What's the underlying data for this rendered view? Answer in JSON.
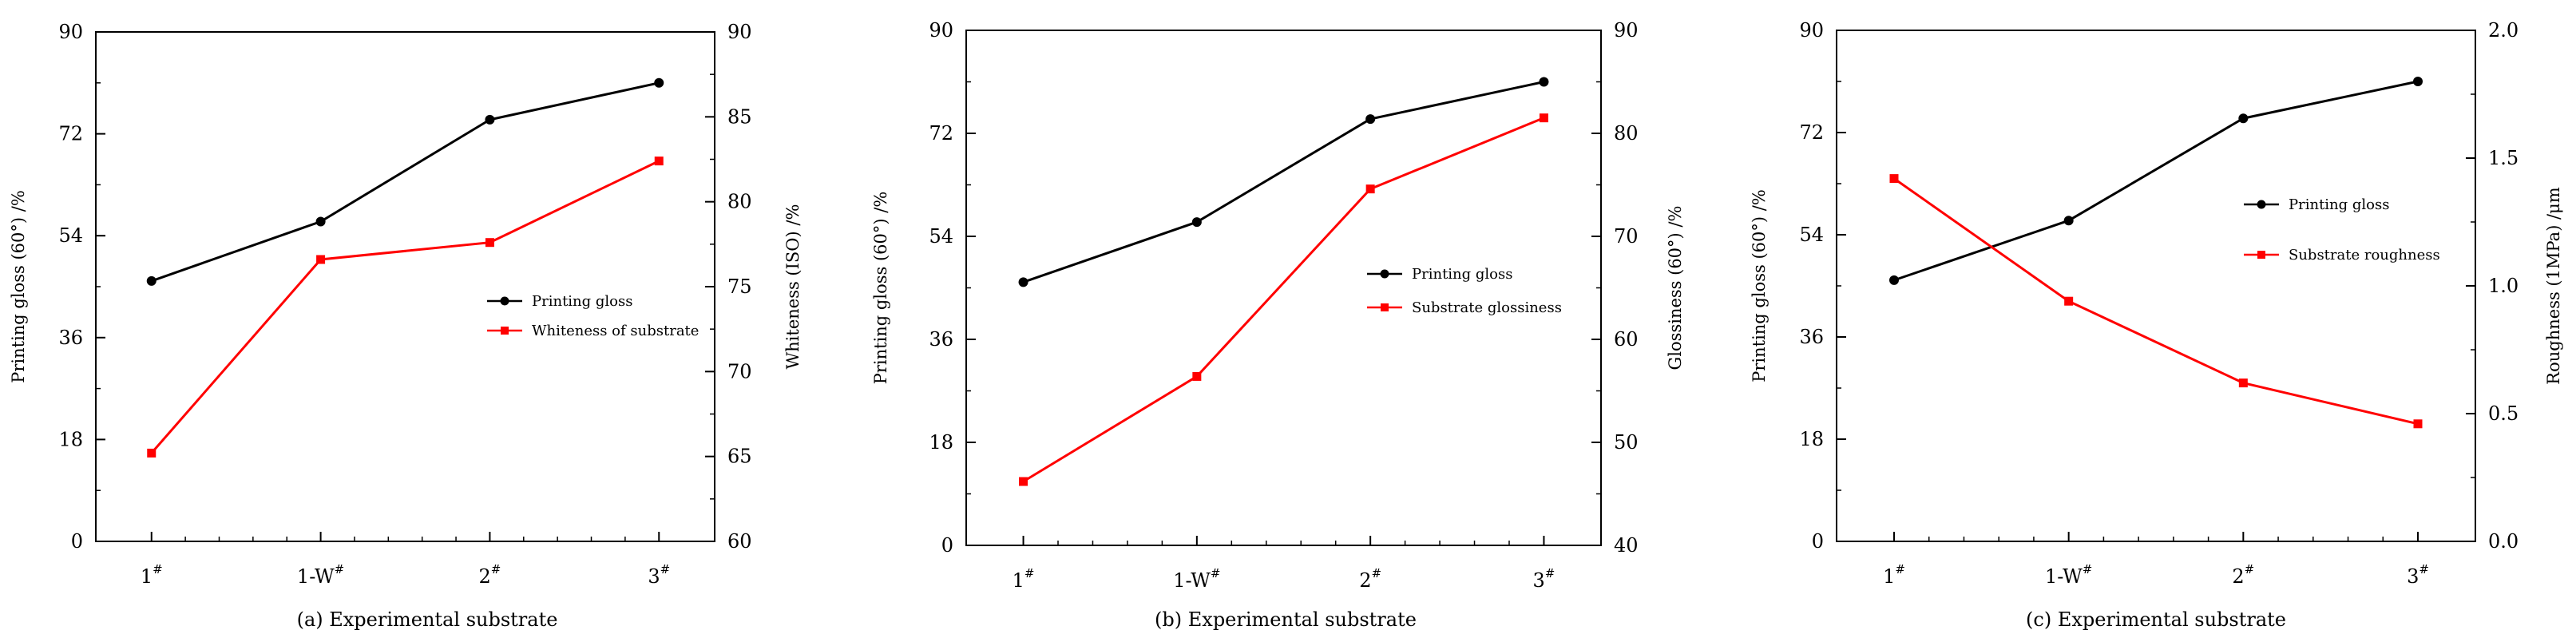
{
  "figure": {
    "categories": [
      "1",
      "1-W",
      "2",
      "3"
    ],
    "category_superscript": "#"
  },
  "chart_data": [
    {
      "type": "line",
      "title": "(a) Experimental substrate",
      "categories": [
        "1#",
        "1-W#",
        "2#",
        "3#"
      ],
      "xlabel": "(a) Experimental substrate",
      "ylabel": "Printing gloss (60°) /%",
      "ylim": [
        0,
        90
      ],
      "y_ticks": [
        0,
        18,
        36,
        54,
        72,
        90
      ],
      "y2label": "Whiteness (ISO) /%",
      "y2lim": [
        60,
        90
      ],
      "y2_ticks": [
        60,
        65,
        70,
        75,
        80,
        85,
        90
      ],
      "grid": false,
      "legend_position": "right-middle",
      "series": [
        {
          "name": "Printing gloss",
          "axis": "left",
          "color": "#000000",
          "marker": "circle",
          "values": [
            46,
            56.5,
            74.5,
            81
          ]
        },
        {
          "name": "Whiteness of substrate",
          "axis": "right",
          "color": "#ff0000",
          "marker": "square",
          "values": [
            65.2,
            76.6,
            77.6,
            82.4
          ]
        }
      ]
    },
    {
      "type": "line",
      "title": "(b) Experimental substrate",
      "categories": [
        "1#",
        "1-W#",
        "2#",
        "3#"
      ],
      "xlabel": "(b) Experimental substrate",
      "ylabel": "Printing gloss (60°) /%",
      "ylim": [
        0,
        90
      ],
      "y_ticks": [
        0,
        18,
        36,
        54,
        72,
        90
      ],
      "y2label": "Glossiness (60°) /%",
      "y2lim": [
        40,
        90
      ],
      "y2_ticks": [
        40,
        50,
        60,
        70,
        80,
        90
      ],
      "grid": false,
      "legend_position": "right-middle",
      "series": [
        {
          "name": "Printing gloss",
          "axis": "left",
          "color": "#000000",
          "marker": "circle",
          "values": [
            46,
            56.5,
            74.5,
            81
          ]
        },
        {
          "name": "Substrate glossiness",
          "axis": "right",
          "color": "#ff0000",
          "marker": "square",
          "values": [
            46.2,
            56.4,
            74.6,
            81.5
          ]
        }
      ]
    },
    {
      "type": "line",
      "title": "(c) Experimental substrate",
      "categories": [
        "1#",
        "1-W#",
        "2#",
        "3#"
      ],
      "xlabel": "(c) Experimental substrate",
      "ylabel": "Printing gloss (60°) /%",
      "ylim": [
        0,
        90
      ],
      "y_ticks": [
        0,
        18,
        36,
        54,
        72,
        90
      ],
      "y2label": "Roughness (1MPa) /μm",
      "y2lim": [
        0.0,
        2.0
      ],
      "y2_ticks": [
        "0.0",
        "0.5",
        "1.0",
        "1.5",
        "2.0"
      ],
      "grid": false,
      "legend_position": "right-upper",
      "series": [
        {
          "name": "Printing gloss",
          "axis": "left",
          "color": "#000000",
          "marker": "circle",
          "values": [
            46,
            56.5,
            74.5,
            81
          ]
        },
        {
          "name": "Substrate roughness",
          "axis": "right",
          "color": "#ff0000",
          "marker": "square",
          "values": [
            1.42,
            0.94,
            0.62,
            0.46
          ]
        }
      ]
    }
  ]
}
